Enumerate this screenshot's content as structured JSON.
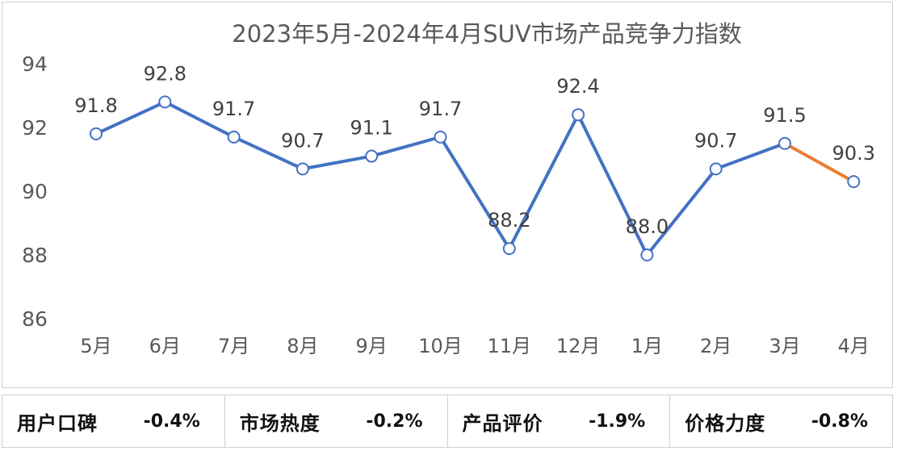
{
  "chart_data": {
    "type": "line",
    "title": "2023年5月-2024年4月SUV市场产品竞争力指数",
    "categories": [
      "5月",
      "6月",
      "7月",
      "8月",
      "9月",
      "10月",
      "11月",
      "12月",
      "1月",
      "2月",
      "3月",
      "4月"
    ],
    "series": [
      {
        "values": [
          91.8,
          92.8,
          91.7,
          90.7,
          91.1,
          91.7,
          88.2,
          92.4,
          88.0,
          90.7,
          91.5,
          90.3
        ]
      }
    ],
    "data_labels": [
      "91.8",
      "92.8",
      "91.7",
      "90.7",
      "91.1",
      "91.7",
      "88.2",
      "92.4",
      "88.0",
      "90.7",
      "91.5",
      "90.3"
    ],
    "ylim": [
      86,
      94
    ],
    "yticks": [
      86,
      88,
      90,
      92,
      94
    ],
    "ytick_labels": [
      "86",
      "88",
      "90",
      "92",
      "94"
    ],
    "colors": {
      "line": "#4472C4",
      "last_segment": "#ED7D31",
      "drop_line": "#c9d8ee",
      "title": "#595959",
      "tick": "#595959"
    },
    "grid": false,
    "legend": "none"
  },
  "metrics": [
    {
      "label": "用户口碑",
      "value": "-0.4%"
    },
    {
      "label": "市场热度",
      "value": "-0.2%"
    },
    {
      "label": "产品评价",
      "value": "-1.9%"
    },
    {
      "label": "价格力度",
      "value": "-0.8%"
    }
  ]
}
